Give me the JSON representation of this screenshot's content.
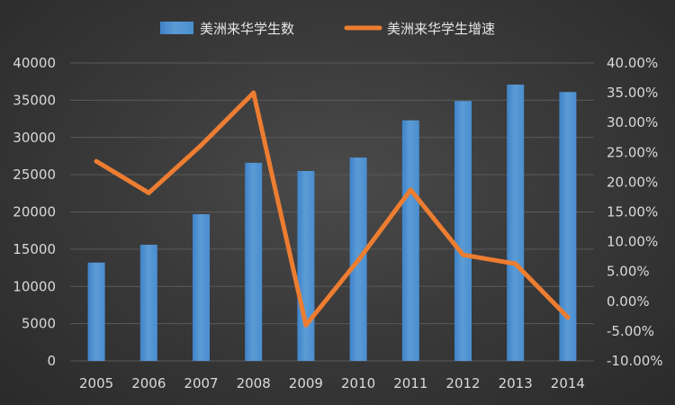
{
  "chart_data": {
    "type": "bar",
    "categories": [
      "2005",
      "2006",
      "2007",
      "2008",
      "2009",
      "2010",
      "2011",
      "2012",
      "2013",
      "2014"
    ],
    "series": [
      {
        "name": "美洲来华学生数",
        "type": "bar",
        "axis": "left",
        "color": "#5b9bd5",
        "values": [
          13200,
          15600,
          19700,
          26600,
          25500,
          27300,
          32300,
          34900,
          37100,
          36100
        ]
      },
      {
        "name": "美洲来华学生增速",
        "type": "line",
        "axis": "right",
        "color": "#ed7d31",
        "values": [
          0.235,
          0.182,
          0.262,
          0.35,
          -0.04,
          0.069,
          0.187,
          0.078,
          0.063,
          -0.027
        ]
      }
    ],
    "y_left": {
      "ylim": [
        0,
        40000
      ],
      "ticks": [
        "0",
        "5000",
        "10000",
        "15000",
        "20000",
        "25000",
        "30000",
        "35000",
        "40000"
      ]
    },
    "y_right": {
      "ylim": [
        -0.1,
        0.4
      ],
      "ticks": [
        "-10.00%",
        "-5.00%",
        "0.00%",
        "5.00%",
        "10.00%",
        "15.00%",
        "20.00%",
        "25.00%",
        "30.00%",
        "35.00%",
        "40.00%"
      ]
    },
    "grid": true,
    "legend_position": "top"
  }
}
